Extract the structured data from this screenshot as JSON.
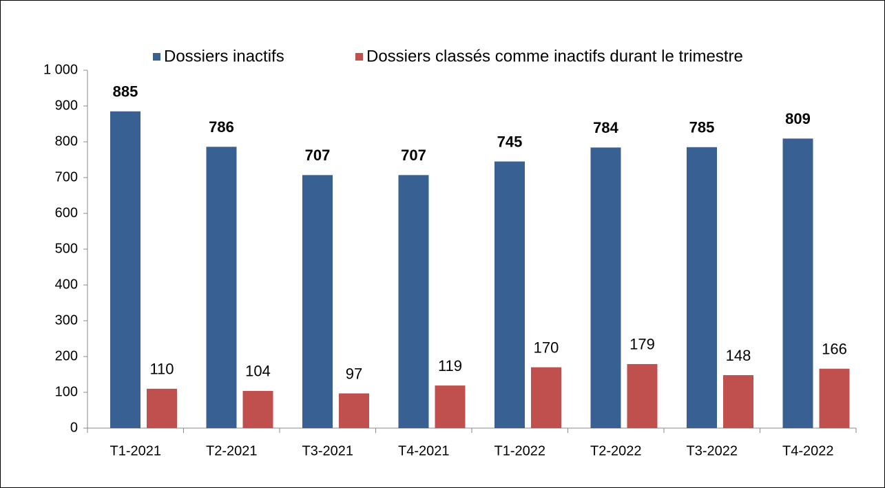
{
  "chart_data": {
    "type": "bar",
    "categories": [
      "T1-2021",
      "T2-2021",
      "T3-2021",
      "T4-2021",
      "T1-2022",
      "T2-2022",
      "T3-2022",
      "T4-2022"
    ],
    "series": [
      {
        "name": "Dossiers inactifs",
        "color": "#386092",
        "values": [
          885,
          786,
          707,
          707,
          745,
          784,
          785,
          809
        ]
      },
      {
        "name": "Dossiers classés comme inactifs durant le trimestre",
        "color": "#c0504d",
        "values": [
          110,
          104,
          97,
          119,
          170,
          179,
          148,
          166
        ]
      }
    ],
    "ylim": [
      0,
      1000
    ],
    "yticks": [
      0,
      100,
      200,
      300,
      400,
      500,
      600,
      700,
      800,
      900,
      {
        "value": 1000,
        "label": "1 000"
      }
    ],
    "grid": false,
    "legend": "top"
  }
}
